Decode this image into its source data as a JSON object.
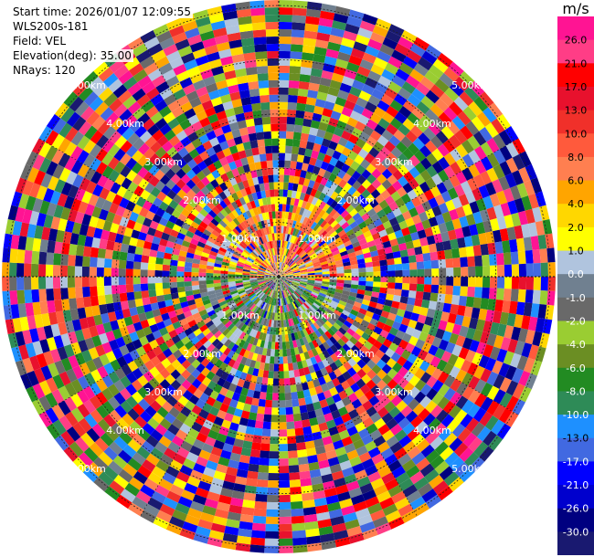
{
  "header": {
    "start_time": "Start time: 2026/01/07 12:09:55",
    "device": "WLS200s-181",
    "field": "Field: VEL",
    "elevation": "Elevation(deg): 35.00",
    "nrays": "NRays: 120"
  },
  "chart_data": {
    "type": "heatmap",
    "projection": "polar",
    "field": "VEL",
    "n_rays": 120,
    "unit": "m/s",
    "range_ring_labels": [
      "1.00km",
      "2.00km",
      "3.00km",
      "4.00km",
      "5.00km"
    ],
    "colorbar": {
      "title": "m/s",
      "labels": [
        "26.0",
        "21.0",
        "17.0",
        "13.0",
        "10.0",
        "8.0",
        "6.0",
        "4.0",
        "2.0",
        "1.0",
        "0.0",
        "-1.0",
        "-2.0",
        "-4.0",
        "-6.0",
        "-8.0",
        "-10.0",
        "-13.0",
        "-17.0",
        "-21.0",
        "-26.0",
        "-30.0"
      ],
      "colors": [
        "#ff1493",
        "#ff3d86",
        "#ff0000",
        "#e8112d",
        "#f0302a",
        "#ff5a3c",
        "#ff7f50",
        "#ffa500",
        "#ffd700",
        "#ffff00",
        "#b0c4de",
        "#708090",
        "#696969",
        "#9acd32",
        "#6b8e23",
        "#228b22",
        "#2e8b57",
        "#1e90ff",
        "#4169e1",
        "#0000ff",
        "#0000cd",
        "#000080",
        "#191970"
      ]
    }
  }
}
